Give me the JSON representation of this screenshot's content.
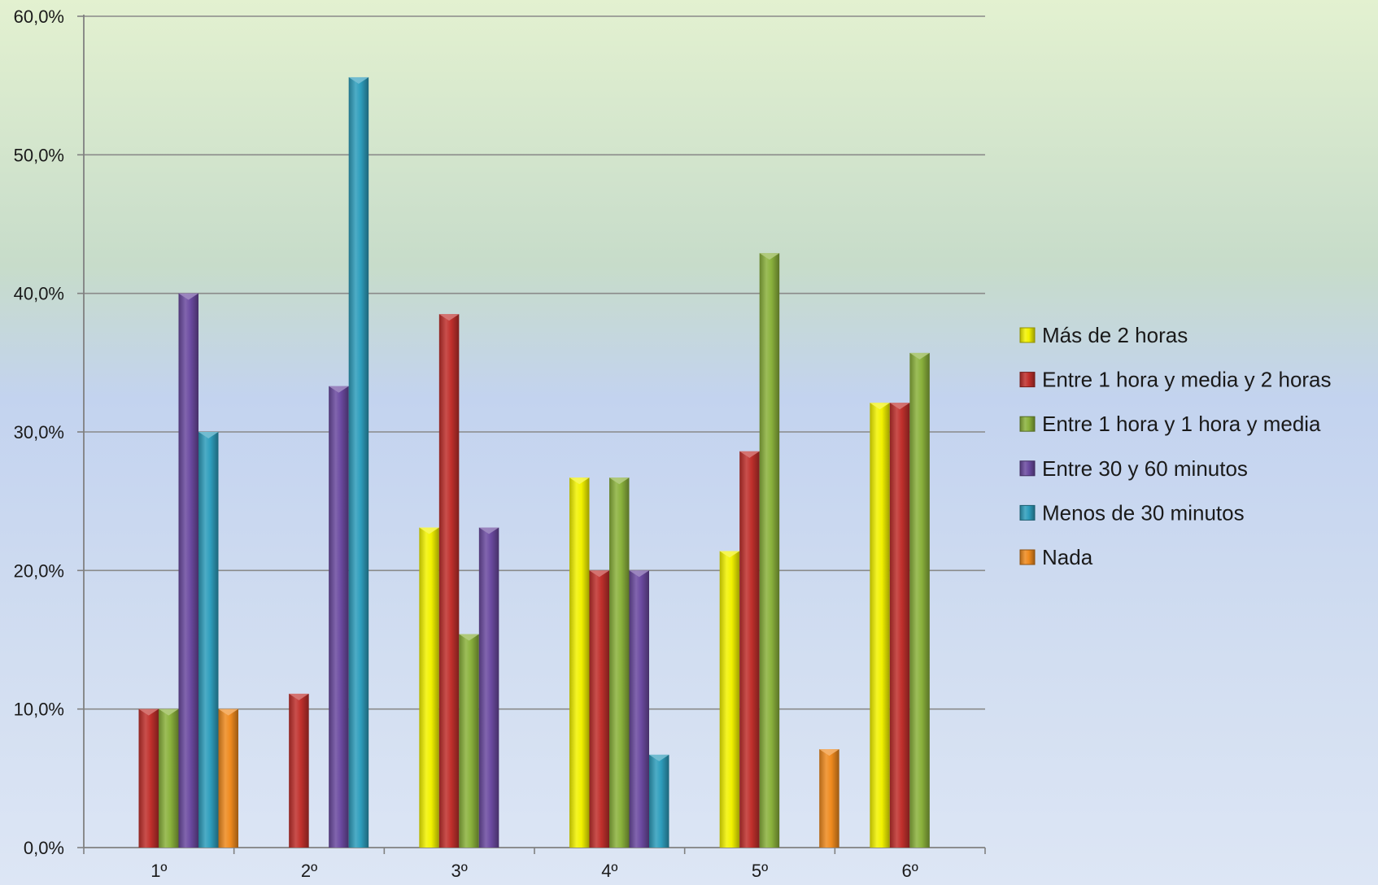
{
  "chart_data": {
    "type": "bar",
    "title": "",
    "xlabel": "",
    "ylabel": "",
    "categories": [
      "1º",
      "2º",
      "3º",
      "4º",
      "5º",
      "6º"
    ],
    "ylim": [
      0,
      60
    ],
    "y_ticks": [
      0,
      10,
      20,
      30,
      40,
      50,
      60
    ],
    "y_tick_labels": [
      "0,0%",
      "10,0%",
      "20,0%",
      "30,0%",
      "40,0%",
      "50,0%",
      "60,0%"
    ],
    "grid": true,
    "legend_position": "right",
    "series": [
      {
        "name": "Más de 2 horas",
        "color": "#f2f200",
        "values": [
          0,
          0,
          23.1,
          26.7,
          21.4,
          32.1
        ]
      },
      {
        "name": "Entre 1 hora y media y 2 horas",
        "color": "#c0302c",
        "values": [
          10.0,
          11.1,
          38.5,
          20.0,
          28.6,
          32.1
        ]
      },
      {
        "name": "Entre 1 hora y 1 hora y media",
        "color": "#8ab13c",
        "values": [
          10.0,
          0,
          15.4,
          26.7,
          42.9,
          35.7
        ]
      },
      {
        "name": "Entre 30 y 60 minutos",
        "color": "#6b4aa0",
        "values": [
          40.0,
          33.3,
          23.1,
          20.0,
          0,
          0
        ]
      },
      {
        "name": "Menos de 30 minutos",
        "color": "#2e9dbc",
        "values": [
          30.0,
          55.6,
          0,
          6.7,
          0,
          0
        ]
      },
      {
        "name": "Nada",
        "color": "#ef8a1e",
        "values": [
          10.0,
          0,
          0,
          0,
          7.1,
          0
        ]
      }
    ]
  }
}
